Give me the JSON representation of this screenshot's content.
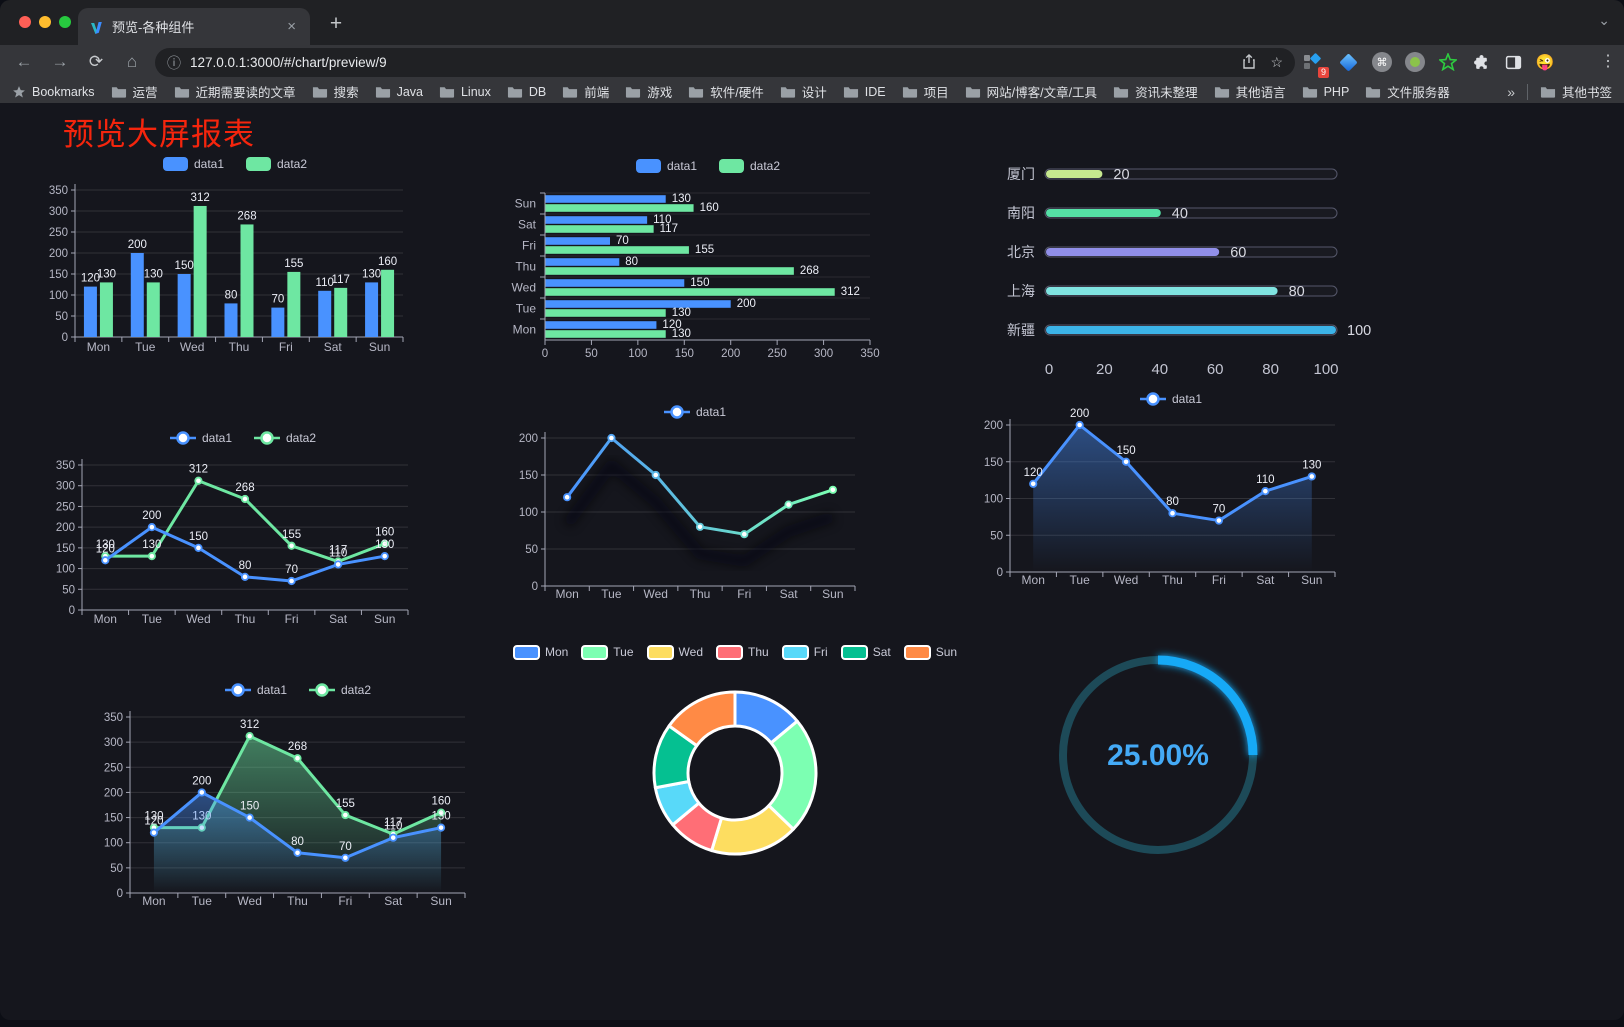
{
  "browser": {
    "tab_title": "预览-各种组件",
    "tab_close": "×",
    "new_tab": "+",
    "url": "127.0.0.1:3000/#/chart/preview/9",
    "extension_badge": "9",
    "bookmarks_root": "Bookmarks",
    "bookmark_folders": [
      "运营",
      "近期需要读的文章",
      "搜索",
      "Java",
      "Linux",
      "DB",
      "前端",
      "游戏",
      "软件/硬件",
      "设计",
      "IDE",
      "项目",
      "网站/博客/文章/工具",
      "资讯未整理",
      "其他语言",
      "PHP",
      "文件服务器"
    ],
    "bookmarks_overflow": "»",
    "other_bookmarks": "其他书签"
  },
  "page": {
    "title": "预览大屏报表"
  },
  "chart_data": [
    {
      "id": "grouped-bar",
      "type": "bar",
      "categories": [
        "Mon",
        "Tue",
        "Wed",
        "Thu",
        "Fri",
        "Sat",
        "Sun"
      ],
      "series": [
        {
          "name": "data1",
          "color": "#4992ff",
          "values": [
            120,
            200,
            150,
            80,
            70,
            110,
            130
          ]
        },
        {
          "name": "data2",
          "color": "#6ee7a2",
          "values": [
            130,
            130,
            312,
            268,
            155,
            117,
            160
          ]
        }
      ],
      "ylim": [
        0,
        350
      ],
      "ytick_step": 50,
      "grid": true,
      "legend_position": "top",
      "value_labels": true
    },
    {
      "id": "horizontal-bar",
      "type": "bar",
      "orientation": "horizontal",
      "categories_bottom_to_top": [
        "Mon",
        "Tue",
        "Wed",
        "Thu",
        "Fri",
        "Sat",
        "Sun"
      ],
      "series": [
        {
          "name": "data1",
          "color": "#4992ff",
          "values": [
            120,
            200,
            150,
            80,
            70,
            110,
            130
          ]
        },
        {
          "name": "data2",
          "color": "#6ee7a2",
          "values": [
            130,
            130,
            312,
            268,
            155,
            117,
            160
          ]
        }
      ],
      "xlim": [
        0,
        350
      ],
      "xtick_step": 50,
      "legend_position": "top",
      "value_labels": true
    },
    {
      "id": "progress-list",
      "type": "bar",
      "orientation": "horizontal-progress",
      "rows": [
        {
          "label": "厦门",
          "value": 20,
          "color": "#c6e88f"
        },
        {
          "label": "南阳",
          "value": 40,
          "color": "#55e0a6"
        },
        {
          "label": "北京",
          "value": 60,
          "color": "#918fe9"
        },
        {
          "label": "上海",
          "value": 80,
          "color": "#80e4e1"
        },
        {
          "label": "新疆",
          "value": 100,
          "color": "#3cb3e8"
        }
      ],
      "max": 100,
      "xticks": [
        0,
        20,
        40,
        60,
        80,
        100
      ]
    },
    {
      "id": "two-series-line",
      "type": "line",
      "categories": [
        "Mon",
        "Tue",
        "Wed",
        "Thu",
        "Fri",
        "Sat",
        "Sun"
      ],
      "series": [
        {
          "name": "data1",
          "color": "#4992ff",
          "values": [
            120,
            200,
            150,
            80,
            70,
            110,
            130
          ]
        },
        {
          "name": "data2",
          "color": "#6ee7a2",
          "values": [
            130,
            130,
            312,
            268,
            155,
            117,
            160
          ]
        }
      ],
      "ylim": [
        0,
        350
      ],
      "ytick_step": 50,
      "grid": true,
      "legend_position": "top",
      "value_labels": true
    },
    {
      "id": "gradient-line",
      "type": "line",
      "categories": [
        "Mon",
        "Tue",
        "Wed",
        "Thu",
        "Fri",
        "Sat",
        "Sun"
      ],
      "series": [
        {
          "name": "data1",
          "color_start": "#4992ff",
          "color_end": "#7cffb2",
          "values": [
            120,
            200,
            150,
            80,
            70,
            110,
            130
          ]
        }
      ],
      "ylim": [
        0,
        200
      ],
      "ytick_step": 50,
      "grid": true,
      "legend_position": "top",
      "value_labels": false,
      "shadow": true
    },
    {
      "id": "single-area",
      "type": "area",
      "categories": [
        "Mon",
        "Tue",
        "Wed",
        "Thu",
        "Fri",
        "Sat",
        "Sun"
      ],
      "series": [
        {
          "name": "data1",
          "color": "#4992ff",
          "values": [
            120,
            200,
            150,
            80,
            70,
            110,
            130
          ]
        }
      ],
      "ylim": [
        0,
        200
      ],
      "ytick_step": 50,
      "grid": true,
      "legend_position": "top",
      "value_labels": true
    },
    {
      "id": "two-series-area",
      "type": "area",
      "categories": [
        "Mon",
        "Tue",
        "Wed",
        "Thu",
        "Fri",
        "Sat",
        "Sun"
      ],
      "series": [
        {
          "name": "data1",
          "color": "#4992ff",
          "values": [
            120,
            200,
            150,
            80,
            70,
            110,
            130
          ]
        },
        {
          "name": "data2",
          "color": "#6ee7a2",
          "values": [
            130,
            130,
            312,
            268,
            155,
            117,
            160
          ]
        }
      ],
      "ylim": [
        0,
        350
      ],
      "ytick_step": 50,
      "grid": true,
      "legend_position": "top",
      "value_labels": true
    },
    {
      "id": "donut",
      "type": "pie",
      "labels": [
        "Mon",
        "Tue",
        "Wed",
        "Thu",
        "Fri",
        "Sat",
        "Sun"
      ],
      "values": [
        120,
        200,
        150,
        80,
        70,
        110,
        130
      ],
      "colors": [
        "#4992ff",
        "#7cffb2",
        "#fddd60",
        "#ff6e76",
        "#58d9f9",
        "#05c091",
        "#ff8a45"
      ],
      "inner_radius_ratio": 0.58,
      "legend_position": "top",
      "border_color": "#ffffff"
    },
    {
      "id": "gauge",
      "type": "gauge",
      "value": 25,
      "display": "25.00%",
      "color": "#18a9f6",
      "track_color": "#1d4a58",
      "text_color": "#44aaf6"
    }
  ]
}
